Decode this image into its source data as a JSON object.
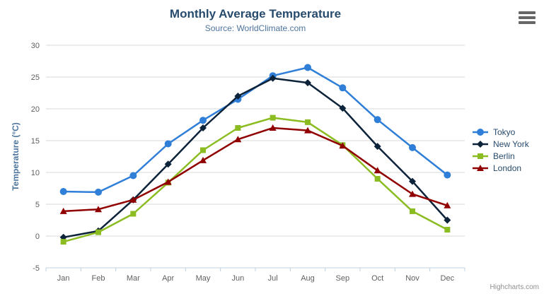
{
  "chart": {
    "credits": "Highcharts.com",
    "context_menu_icon": "hamburger-menu-icon",
    "background_color": "#ffffff"
  },
  "chart_data": {
    "type": "line",
    "title": "Monthly Average Temperature",
    "subtitle": "Source: WorldClimate.com",
    "categories": [
      "Jan",
      "Feb",
      "Mar",
      "Apr",
      "May",
      "Jun",
      "Jul",
      "Aug",
      "Sep",
      "Oct",
      "Nov",
      "Dec"
    ],
    "series": [
      {
        "name": "Tokyo",
        "color": "#2f7ed8",
        "marker": "circle",
        "values": [
          7.0,
          6.9,
          9.5,
          14.5,
          18.2,
          21.5,
          25.2,
          26.5,
          23.3,
          18.3,
          13.9,
          9.6
        ]
      },
      {
        "name": "New York",
        "color": "#0d233a",
        "marker": "diamond",
        "values": [
          -0.2,
          0.8,
          5.7,
          11.3,
          17.0,
          22.0,
          24.8,
          24.1,
          20.1,
          14.1,
          8.6,
          2.5
        ]
      },
      {
        "name": "Berlin",
        "color": "#8bbc21",
        "marker": "square",
        "values": [
          -0.9,
          0.6,
          3.5,
          8.4,
          13.5,
          17.0,
          18.6,
          17.9,
          14.3,
          9.0,
          3.9,
          1.0
        ]
      },
      {
        "name": "London",
        "color": "#910000",
        "marker": "triangle",
        "values": [
          3.9,
          4.2,
          5.7,
          8.5,
          11.9,
          15.2,
          17.0,
          16.6,
          14.2,
          10.3,
          6.6,
          4.8
        ]
      }
    ],
    "xlabel": "",
    "ylabel": "Temperature (°C)",
    "ylim": [
      -5,
      30
    ],
    "yticks": [
      -5,
      0,
      5,
      10,
      15,
      20,
      25,
      30
    ],
    "grid": true,
    "legend_position": "right",
    "styles": {
      "title_color": "#274b6d",
      "subtitle_color": "#4d759e",
      "axis_title_color": "#4d759e",
      "tick_label_color": "#606060",
      "grid_color": "#d8d8d8",
      "axis_line_color": "#c0d0e0",
      "legend_text_color": "#274b6d",
      "credits_color": "#909090"
    }
  }
}
